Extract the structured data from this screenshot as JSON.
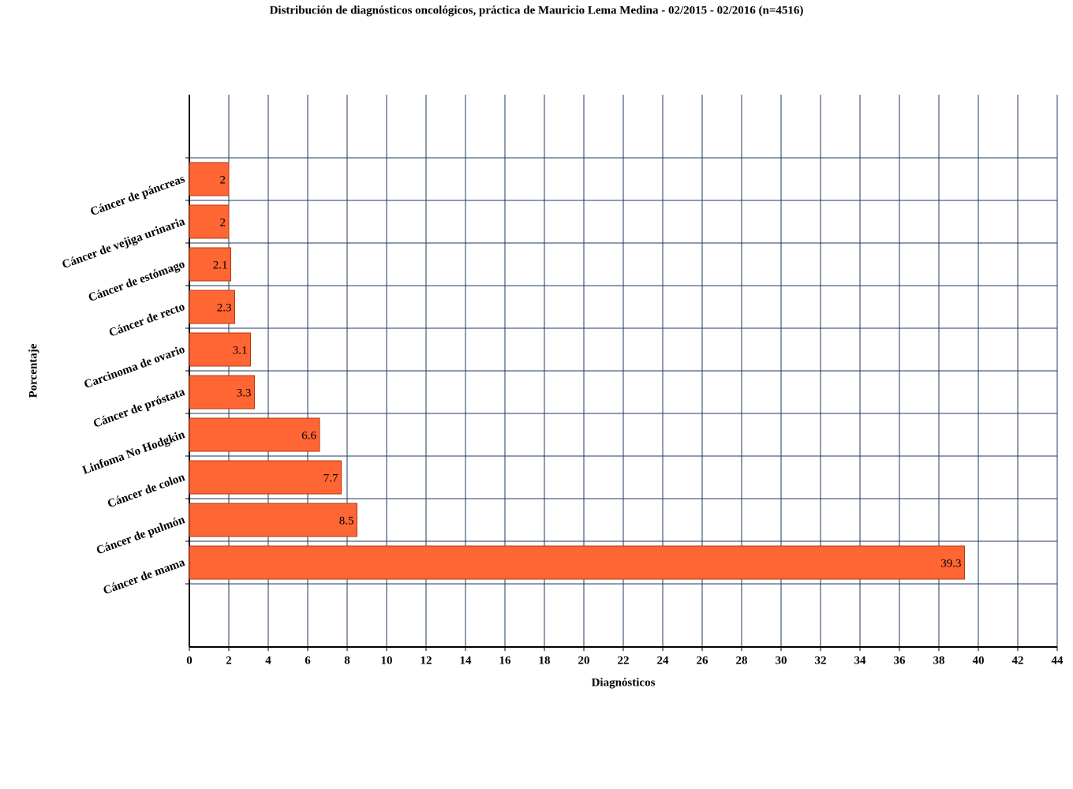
{
  "chart_data": {
    "type": "bar",
    "orientation": "horizontal",
    "title": "Distribución de diagnósticos oncológicos, práctica de Mauricio Lema Medina - 02/2015 - 02/2016 (n=4516)",
    "x_label": "Diagnósticos",
    "y_label": "Porcentaje",
    "categories": [
      "Cáncer de páncreas",
      "Cáncer de vejiga urinaria",
      "Cáncer de estómago",
      "Cáncer de recto",
      "Carcinoma de ovario",
      "Cáncer de próstata",
      "Linfoma No Hodgkin",
      "Cáncer de colon",
      "Cáncer de pulmón",
      "Cáncer de mama"
    ],
    "values": [
      2,
      2,
      2.1,
      2.3,
      3.1,
      3.3,
      6.6,
      7.7,
      8.5,
      39.3
    ],
    "color": "#ff6633",
    "xlim": [
      0,
      44
    ],
    "xticks": [
      0,
      2,
      4,
      6,
      8,
      10,
      12,
      14,
      16,
      18,
      20,
      22,
      24,
      26,
      28,
      30,
      32,
      34,
      36,
      38,
      40,
      42,
      44
    ],
    "grid": true
  }
}
